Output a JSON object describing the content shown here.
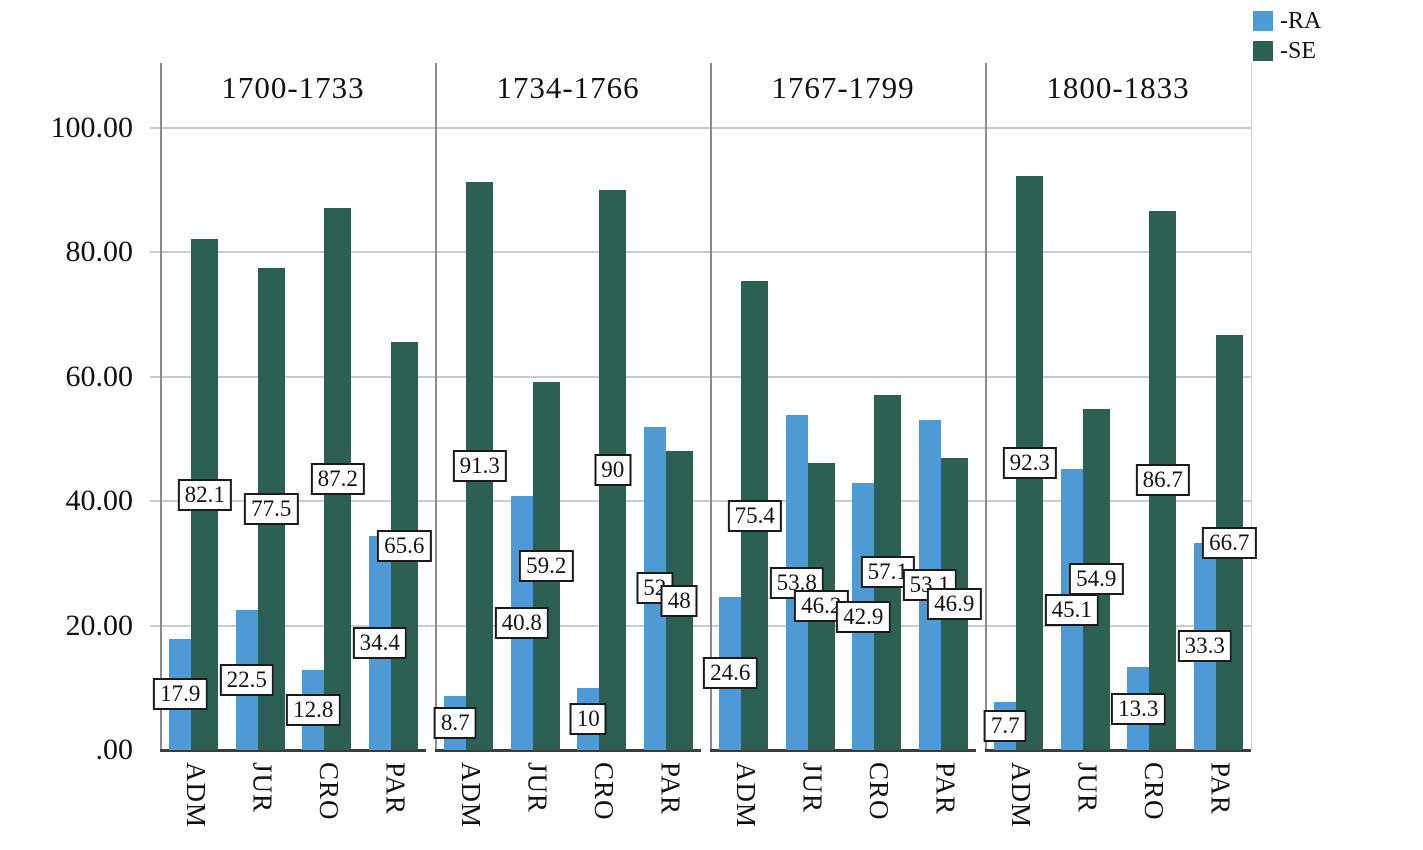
{
  "legend": {
    "items": [
      {
        "label": "-RA",
        "color": "#4e9ad5"
      },
      {
        "label": "-SE",
        "color": "#2b6053"
      }
    ]
  },
  "y_axis": {
    "ticks": [
      ".00",
      "20.00",
      "40.00",
      "60.00",
      "80.00",
      "100.00"
    ],
    "values": [
      0,
      20,
      40,
      60,
      80,
      100
    ]
  },
  "colors": {
    "ra": "#4e9ad5",
    "se": "#2b6053",
    "grid": "#cbcbcb",
    "axis": "#8a8a8a",
    "baseline": "#3c3c3c"
  },
  "chart_data": {
    "type": "bar",
    "categories": [
      "ADM",
      "JUR",
      "CRO",
      "PAR"
    ],
    "ylim": [
      0,
      100
    ],
    "grid": true,
    "legend_position": "top-right",
    "panels": [
      {
        "title": "1700-1733",
        "series": [
          {
            "name": "-RA",
            "values": [
              17.9,
              22.5,
              12.8,
              34.4
            ]
          },
          {
            "name": "-SE",
            "values": [
              82.1,
              77.5,
              87.2,
              65.6
            ]
          }
        ]
      },
      {
        "title": "1734-1766",
        "series": [
          {
            "name": "-RA",
            "values": [
              8.7,
              40.8,
              10,
              52
            ]
          },
          {
            "name": "-SE",
            "values": [
              91.3,
              59.2,
              90,
              48
            ]
          }
        ]
      },
      {
        "title": "1767-1799",
        "series": [
          {
            "name": "-RA",
            "values": [
              24.6,
              53.8,
              42.9,
              53.1
            ]
          },
          {
            "name": "-SE",
            "values": [
              75.4,
              46.2,
              57.1,
              46.9
            ]
          }
        ]
      },
      {
        "title": "1800-1833",
        "series": [
          {
            "name": "-RA",
            "values": [
              7.7,
              45.1,
              13.3,
              33.3
            ]
          },
          {
            "name": "-SE",
            "values": [
              92.3,
              54.9,
              86.7,
              66.7
            ]
          }
        ]
      }
    ]
  }
}
